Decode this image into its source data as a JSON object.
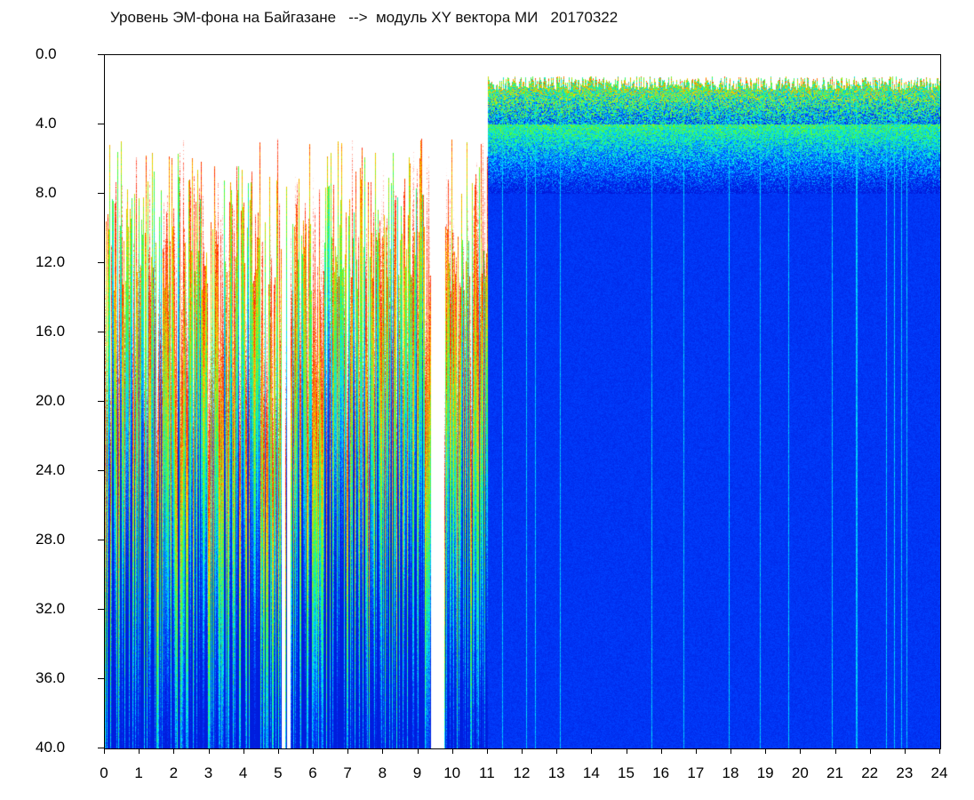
{
  "title": "Уровень ЭМ-фона на Байгазане   -->  модуль XY вектора МИ   20170322",
  "chart_data": {
    "type": "heatmap",
    "title": "Уровень ЭМ-фона на Байгазане   -->  модуль XY вектора МИ   20170322",
    "xlabel": "",
    "ylabel": "",
    "xlim": [
      0,
      24
    ],
    "ylim": [
      0,
      40
    ],
    "y_inverted": true,
    "x_ticks": [
      "0",
      "1",
      "2",
      "3",
      "4",
      "5",
      "6",
      "7",
      "8",
      "9",
      "10",
      "11",
      "12",
      "13",
      "14",
      "15",
      "16",
      "17",
      "18",
      "19",
      "20",
      "21",
      "22",
      "23",
      "24"
    ],
    "y_ticks": [
      "0.0",
      "4.0",
      "8.0",
      "12.0",
      "16.0",
      "20.0",
      "24.0",
      "28.0",
      "32.0",
      "36.0",
      "40.0"
    ],
    "colormap": [
      "#ffffff",
      "#ff2000",
      "#ffd000",
      "#40ff40",
      "#00e0ff",
      "#0040ff",
      "#0018d8"
    ],
    "description_of_regions": [
      {
        "x": [
          0,
          11
        ],
        "pattern": "dense vertical streaks; tops near 8-12, with sparse spikes up to 2-4"
      },
      {
        "x": [
          11,
          24
        ],
        "pattern": "band of high level from about 1.5 to 8; deep blue below 15"
      }
    ],
    "grid": false
  }
}
